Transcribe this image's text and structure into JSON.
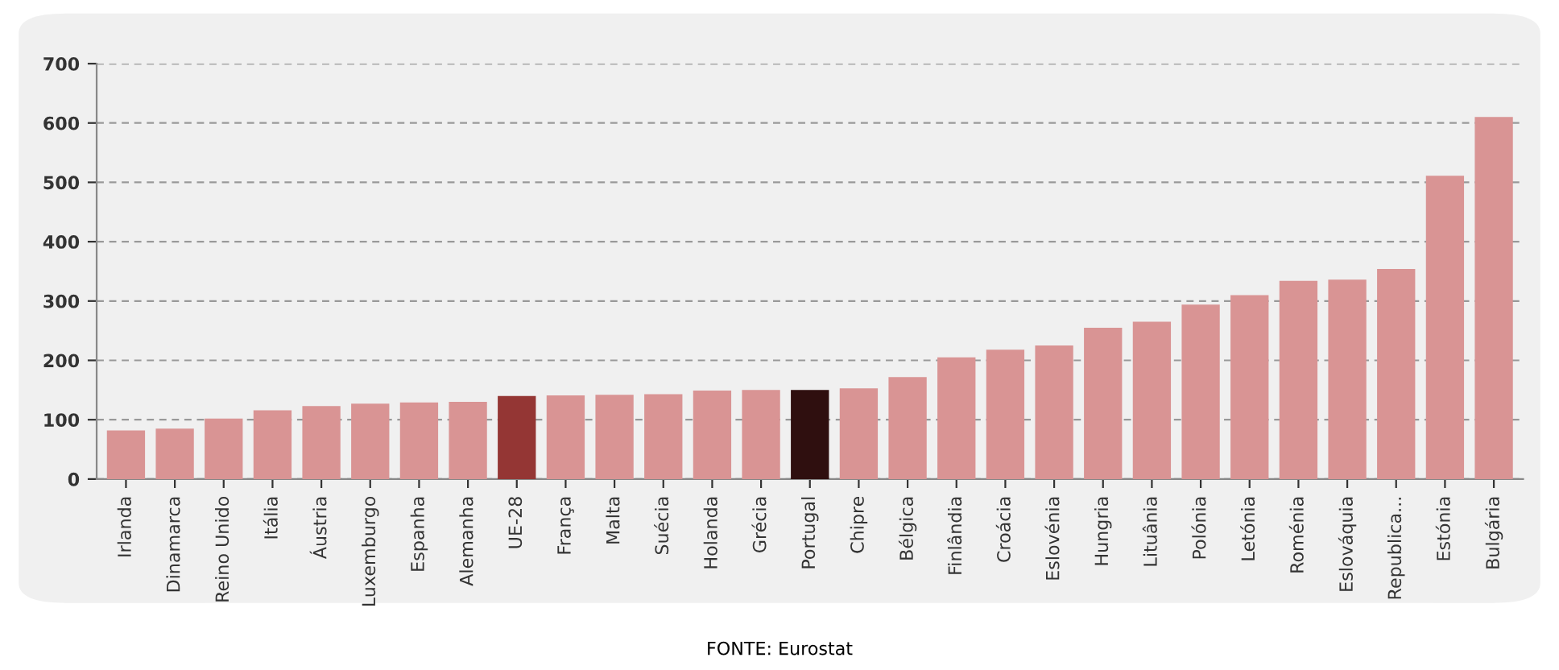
{
  "chart_data": {
    "type": "bar",
    "categories": [
      "Irlanda",
      "Dinamarca",
      "Reino Unido",
      "Itália",
      "Áustria",
      "Luxemburgo",
      "Espanha",
      "Alemanha",
      "UE-28",
      "França",
      "Malta",
      "Suécia",
      "Holanda",
      "Grécia",
      "Portugal",
      "Chipre",
      "Bélgica",
      "Finlândia",
      "Croácia",
      "Eslovénia",
      "Hungria",
      "Lituânia",
      "Polónia",
      "Letónia",
      "Roménia",
      "Eslováquia",
      "Republica...",
      "Estónia",
      "Bulgária"
    ],
    "values": [
      82,
      85,
      102,
      116,
      123,
      127,
      129,
      130,
      140,
      141,
      142,
      143,
      149,
      150,
      150,
      153,
      172,
      205,
      218,
      225,
      255,
      265,
      294,
      310,
      334,
      336,
      354,
      511,
      610
    ],
    "colors": [
      "#d99494",
      "#d99494",
      "#d99494",
      "#d99494",
      "#d99494",
      "#d99494",
      "#d99494",
      "#d99494",
      "#943634",
      "#d99494",
      "#d99494",
      "#d99494",
      "#d99494",
      "#d99494",
      "#2f0f0f",
      "#d99494",
      "#d99494",
      "#d99494",
      "#d99494",
      "#d99494",
      "#d99494",
      "#d99494",
      "#d99494",
      "#d99494",
      "#d99494",
      "#d99494",
      "#d99494",
      "#d99494",
      "#d99494"
    ],
    "ylim": [
      0,
      700
    ],
    "yticks": [
      0,
      100,
      200,
      300,
      400,
      500,
      600,
      700
    ],
    "grid": "y",
    "annotations": [
      "FONTE: Eurostat"
    ]
  }
}
